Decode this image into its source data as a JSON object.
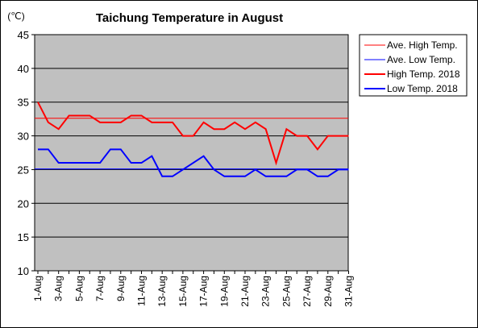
{
  "chart_data": {
    "type": "line",
    "title": "Taichung Temperature in August",
    "unit_label": "(℃)",
    "ylim": [
      10,
      45
    ],
    "yticks": [
      10,
      15,
      20,
      25,
      30,
      35,
      40,
      45
    ],
    "x": [
      1,
      2,
      3,
      4,
      5,
      6,
      7,
      8,
      9,
      10,
      11,
      12,
      13,
      14,
      15,
      16,
      17,
      18,
      19,
      20,
      21,
      22,
      23,
      24,
      25,
      26,
      27,
      28,
      29,
      30,
      31
    ],
    "xtick_labels": [
      "1-Aug",
      "3-Aug",
      "5-Aug",
      "7-Aug",
      "9-Aug",
      "11-Aug",
      "13-Aug",
      "15-Aug",
      "17-Aug",
      "19-Aug",
      "21-Aug",
      "23-Aug",
      "25-Aug",
      "27-Aug",
      "29-Aug",
      "31-Aug"
    ],
    "xtick_days": [
      1,
      3,
      5,
      7,
      9,
      11,
      13,
      15,
      17,
      19,
      21,
      23,
      25,
      27,
      29,
      31
    ],
    "plot_background": "#c0c0c0",
    "grid": true,
    "legend_position": "right",
    "series": [
      {
        "name": "Ave. High Temp.",
        "kind": "constant",
        "value": 32.6,
        "color": "#ff0000",
        "width": 1
      },
      {
        "name": "Ave. Low Temp.",
        "kind": "constant",
        "value": 25.1,
        "color": "#0000ff",
        "width": 1
      },
      {
        "name": "High Temp. 2018",
        "kind": "daily",
        "color": "#ff0000",
        "width": 2,
        "values": [
          35,
          32,
          31,
          33,
          33,
          33,
          32,
          32,
          32,
          33,
          33,
          32,
          32,
          32,
          30,
          30,
          32,
          31,
          31,
          32,
          31,
          32,
          31,
          26,
          31,
          30,
          30,
          28,
          30,
          30,
          30
        ]
      },
      {
        "name": "Low Temp. 2018",
        "kind": "daily",
        "color": "#0000ff",
        "width": 2,
        "values": [
          28,
          28,
          26,
          26,
          26,
          26,
          26,
          28,
          28,
          26,
          26,
          27,
          24,
          24,
          25,
          26,
          27,
          25,
          24,
          24,
          24,
          25,
          24,
          24,
          24,
          25,
          25,
          24,
          24,
          25,
          25
        ]
      }
    ]
  }
}
